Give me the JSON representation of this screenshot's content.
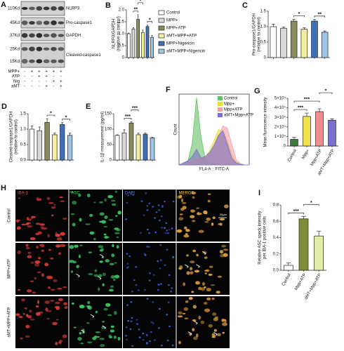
{
  "chart_data": [
    {
      "panel": "A",
      "type": "blot",
      "bands": [
        {
          "sizes": [
            "110Kd"
          ],
          "label": "NLRP3"
        },
        {
          "sizes": [
            "45Kd"
          ],
          "label": "Pro-caspase1"
        },
        {
          "sizes": [
            "37Kd"
          ],
          "label": "GAPDH"
        },
        {
          "sizes": [
            "25Kd",
            "15Kd"
          ],
          "label": "Cleaved-caspase1"
        }
      ],
      "treatments": [
        {
          "name": "MPP+",
          "signs": [
            "-",
            "+",
            "+",
            "+",
            "+",
            "+"
          ]
        },
        {
          "name": "ATP",
          "signs": [
            "-",
            "-",
            "+",
            "+",
            "-",
            "-"
          ]
        },
        {
          "name": "Nig",
          "signs": [
            "-",
            "-",
            "-",
            "-",
            "+",
            "+"
          ]
        },
        {
          "name": "aMT",
          "signs": [
            "-",
            "-",
            "-",
            "+",
            "-",
            "+"
          ]
        }
      ]
    },
    {
      "panel": "B",
      "type": "bar",
      "ylabel": [
        "NLRP3/GAPDH",
        "(relative to control)"
      ],
      "categories": [
        "Control",
        "MPP+",
        "MPP+ATP",
        "aMT+MPP+ATP",
        "MPP+Nigericin",
        "aMT+MPP+Nigericin"
      ],
      "legend": true,
      "values": [
        1.0,
        1.2,
        1.6,
        1.05,
        1.3,
        0.85
      ],
      "errors": [
        0.03,
        0.05,
        0.2,
        0.1,
        0.06,
        0.08
      ],
      "colors": [
        "#ffffff",
        "#d9d9d9",
        "#8a8a5c",
        "#f5f0a0",
        "#3f6fb5",
        "#9ec5e8"
      ],
      "ylim": [
        0,
        2
      ],
      "yticks": [
        0,
        0.5,
        {
          "value": 1,
          "label": "1.0"
        },
        1.5,
        {
          "value": 2,
          "label": "2.0"
        }
      ],
      "annotations": [
        {
          "label": "**",
          "between": [
            1,
            2
          ]
        },
        {
          "label": "*",
          "between": [
            2,
            3
          ]
        },
        {
          "label": "*",
          "between": [
            4,
            5
          ]
        }
      ]
    },
    {
      "panel": "C",
      "type": "bar",
      "ylabel": [
        "Pro-caspase1/GAPDH",
        "(relative to control)"
      ],
      "values": [
        1.0,
        0.95,
        1.18,
        0.92,
        1.18,
        0.82
      ],
      "errors": [
        0.08,
        0.04,
        0.06,
        0.05,
        0.05,
        0.04
      ],
      "colors": [
        "#ffffff",
        "#d9d9d9",
        "#8a8a5c",
        "#f5f0a0",
        "#3f6fb5",
        "#9ec5e8"
      ],
      "ylim": [
        0,
        1.5
      ],
      "yticks": [
        0,
        0.5,
        {
          "value": 1,
          "label": "1.0"
        },
        1.5
      ],
      "annotations": [
        {
          "label": "*",
          "between": [
            2,
            3
          ]
        },
        {
          "label": "**",
          "between": [
            4,
            5
          ]
        }
      ]
    },
    {
      "panel": "D",
      "type": "bar",
      "ylabel": [
        "Cleaved-caspase1/GAPDH",
        "(relative to control)"
      ],
      "values": [
        1.0,
        0.95,
        1.22,
        0.82,
        1.15,
        0.8
      ],
      "errors": [
        0.1,
        0.12,
        0.12,
        0.05,
        0.06,
        0.07
      ],
      "colors": [
        "#ffffff",
        "#d9d9d9",
        "#8a8a5c",
        "#f5f0a0",
        "#3f6fb5",
        "#9ec5e8"
      ],
      "ylim": [
        0,
        1.5
      ],
      "yticks": [
        {
          "value": 0,
          "label": "0.0"
        },
        0.5,
        {
          "value": 1,
          "label": "1.0"
        },
        1.5
      ],
      "annotations": [
        {
          "label": "*",
          "between": [
            2,
            3
          ]
        },
        {
          "label": "*",
          "between": [
            4,
            5
          ]
        }
      ]
    },
    {
      "panel": "E",
      "type": "bar",
      "ylabel": [
        "IL-1β measurement (pg/ml)"
      ],
      "values": [
        80,
        88,
        120,
        82,
        84,
        72
      ],
      "errors": [
        2,
        10,
        4,
        5,
        3,
        2
      ],
      "colors": [
        "#ffffff",
        "#d9d9d9",
        "#8a8a5c",
        "#f5f0a0",
        "#3f6fb5",
        "#9ec5e8"
      ],
      "ylim": [
        0,
        150
      ],
      "yticks": [
        0,
        50,
        100,
        150
      ],
      "annotations": [
        {
          "label": "***",
          "between": [
            1,
            2
          ]
        },
        {
          "label": "***",
          "between": [
            2,
            3
          ]
        }
      ]
    },
    {
      "panel": "F",
      "type": "area",
      "xlabel": "FL4-A :: FITC-A",
      "ylabel": "Count",
      "x": [
        0,
        1,
        2,
        3,
        4,
        5,
        6,
        7,
        8,
        9,
        10,
        11,
        12,
        13,
        14,
        15,
        16
      ],
      "xlim": [
        0,
        16
      ],
      "ylim": [
        0,
        100
      ],
      "series": [
        {
          "name": "Control",
          "color": "#66c266",
          "values": [
            0,
            2,
            5,
            30,
            95,
            40,
            8,
            3,
            2,
            1,
            1,
            0,
            0,
            0,
            0,
            0,
            0
          ]
        },
        {
          "name": "Mpp+",
          "color": "#e8e030",
          "values": [
            0,
            2,
            4,
            8,
            10,
            9,
            12,
            20,
            35,
            50,
            48,
            35,
            15,
            4,
            1,
            0,
            0
          ]
        },
        {
          "name": "Mpp+ATP",
          "color": "#f4a0a8",
          "values": [
            0,
            2,
            4,
            7,
            9,
            8,
            10,
            15,
            25,
            40,
            55,
            52,
            30,
            8,
            2,
            0,
            0
          ]
        },
        {
          "name": "aMT+Mpp+ATP",
          "color": "#7a70d0",
          "values": [
            0,
            3,
            6,
            12,
            22,
            10,
            12,
            18,
            28,
            42,
            48,
            30,
            10,
            3,
            1,
            0,
            0
          ]
        }
      ]
    },
    {
      "panel": "G",
      "type": "bar",
      "ylabel": [
        "Mean flurescence intensity"
      ],
      "categories": [
        "Control",
        "Mpp+",
        "Mpp+ATP",
        "aMT+Mpp+ATP"
      ],
      "values": [
        7000,
        31000,
        36000,
        27000
      ],
      "errors": [
        2000,
        3500,
        3000,
        1500
      ],
      "colors": [
        "#3d7a3d",
        "#f0e14a",
        "#f28b8b",
        "#7b6fd0"
      ],
      "ylim": [
        0,
        50000
      ],
      "yticks": [
        0,
        {
          "value": 10000,
          "label": "1×10⁴"
        },
        {
          "value": 20000,
          "label": "2×10⁴"
        },
        {
          "value": 30000,
          "label": "3×10⁴"
        },
        {
          "value": 40000,
          "label": "4×10⁴"
        },
        {
          "value": 50000,
          "label": "5×10⁴"
        }
      ],
      "annotations": [
        {
          "label": "***",
          "between": [
            0,
            1
          ]
        },
        {
          "label": "***",
          "between": [
            0,
            2
          ]
        },
        {
          "label": "*",
          "between": [
            2,
            3
          ]
        }
      ]
    },
    {
      "panel": "H",
      "type": "micrograph",
      "columns": [
        "IBA-1",
        "ASC",
        "DAPI",
        "MERGE"
      ],
      "rows": [
        "Control",
        "MPP+ATP",
        "aMT+MPP+ATP"
      ],
      "scale_bar": "20μm"
    },
    {
      "panel": "I",
      "type": "bar",
      "ylabel": [
        "Relative ASC speck intensity",
        "per IBA-1 positive cells"
      ],
      "categories": [
        "Control",
        "Mpp+ATP",
        "aMT+Mpp+ATP"
      ],
      "values": [
        0.06,
        0.63,
        0.42
      ],
      "errors": [
        0.03,
        0.03,
        0.06
      ],
      "colors": [
        "#ffffff",
        "#7d8f3a",
        "#e3efa6"
      ],
      "ylim": [
        0,
        0.8
      ],
      "yticks": [
        {
          "value": 0,
          "label": "0.0"
        },
        0.2,
        0.4,
        0.6,
        0.8
      ],
      "annotations": [
        {
          "label": "***",
          "between": [
            0,
            1
          ]
        },
        {
          "label": "*",
          "between": [
            1,
            2
          ]
        }
      ]
    }
  ]
}
